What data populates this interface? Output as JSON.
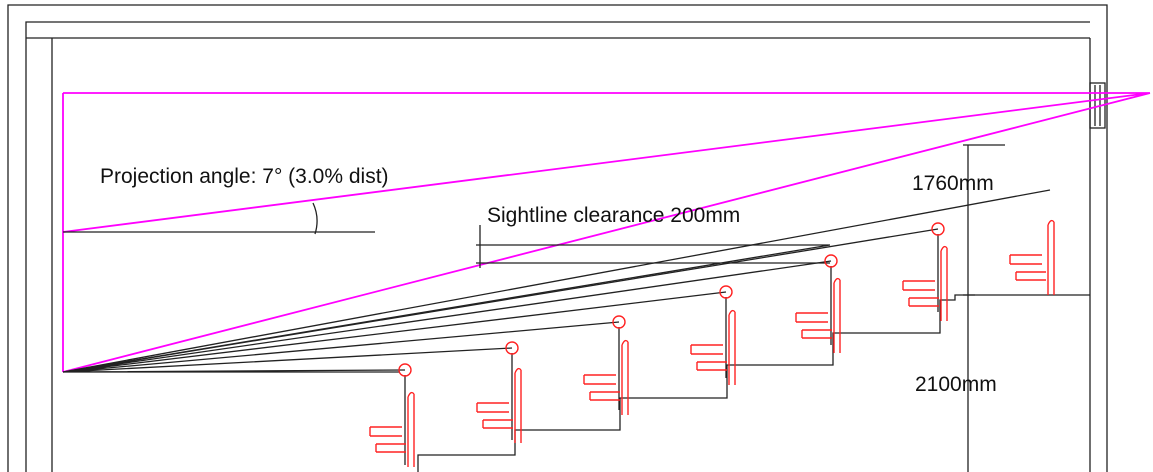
{
  "labels": {
    "projection_angle": "Projection angle: 7° (3.0% dist)",
    "sightline_clearance": "Sightline clearance 200mm",
    "upper_height": "1760mm",
    "lower_height": "2100mm"
  }
}
